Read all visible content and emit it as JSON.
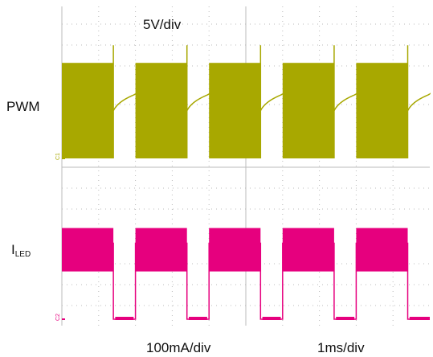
{
  "labels": {
    "volts_per_div": "5V/div",
    "ch1_label": "PWM",
    "ch2_label_main": "I",
    "ch2_label_sub": "LED",
    "amps_per_div": "100mA/div",
    "time_per_div": "1ms/div",
    "ch1_marker": "C1",
    "ch2_marker": "C2"
  },
  "chart_data": {
    "type": "line",
    "x_unit": "ms",
    "xlim": [
      0,
      10
    ],
    "grid": true,
    "colors": {
      "pwm": "#a8a800",
      "iled": "#e6007e",
      "grid": "#bbbbbb"
    },
    "pwm_on_intervals_ms": [
      [
        0,
        1.4
      ],
      [
        2,
        3.4
      ],
      [
        4,
        5.4
      ],
      [
        6,
        7.4
      ],
      [
        8,
        9.4
      ]
    ],
    "series": [
      {
        "name": "PWM",
        "scale": "5V/div",
        "on_level_div": 4.4,
        "off_level_div": 3.0,
        "off_after_pulse_div": 2.2,
        "noise_band_div": [
          0,
          4.4
        ]
      },
      {
        "name": "ILED",
        "scale": "100mA/div",
        "on_level_div": 3.5,
        "off_level_div": 0,
        "noise_band_div": [
          2.2,
          4.2
        ]
      }
    ]
  }
}
